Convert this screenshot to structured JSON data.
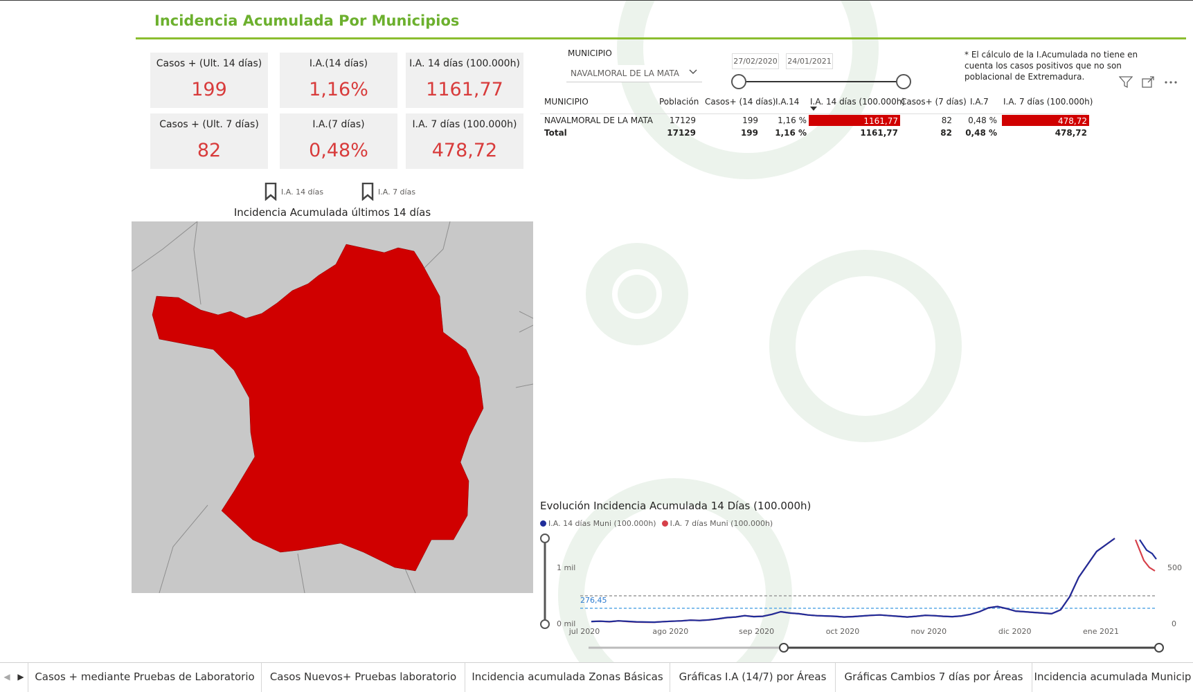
{
  "report": {
    "title": "Incidencia Acumulada Por Municipios"
  },
  "cards": [
    {
      "label": "Casos + (Ult. 14 días)",
      "value": "199"
    },
    {
      "label": "I.A.(14 días)",
      "value": "1,16%"
    },
    {
      "label": "I.A. 14 días (100.000h)",
      "value": "1161,77"
    },
    {
      "label": "Casos + (Ult. 7 días)",
      "value": "82"
    },
    {
      "label": "I.A.(7 días)",
      "value": "0,48%"
    },
    {
      "label": "I.A. 7 días (100.000h)",
      "value": "478,72"
    }
  ],
  "bookmarks": {
    "ia14": "I.A. 14 días",
    "ia7": "I.A. 7 días"
  },
  "map": {
    "title": "Incidencia Acumulada últimos 14 días",
    "fill_color": "#d00000",
    "background_color": "#c8c8c8"
  },
  "slicer": {
    "label": "MUNICIPIO",
    "selected": "NAVALMORAL DE LA MATA",
    "date_start": "27/02/2020",
    "date_end": "24/01/2021"
  },
  "note": "* El cálculo de la I.Acumulada no tiene en cuenta los casos positivos que no son poblacional de Extremadura.",
  "table": {
    "headers": [
      "MUNICIPIO",
      "Población",
      "Casos+ (14 días)",
      "I.A.14",
      "I.A. 14 días (100.000h)",
      "Casos+ (7 días)",
      "I.A.7",
      "I.A. 7 días (100.000h)"
    ],
    "rows": [
      [
        "NAVALMORAL DE LA MATA",
        "17129",
        "199",
        "1,16 %",
        "1161,77",
        "82",
        "0,48 %",
        "478,72"
      ]
    ],
    "total": [
      "Total",
      "17129",
      "199",
      "1,16 %",
      "1161,77",
      "82",
      "0,48 %",
      "478,72"
    ],
    "highlight_color": "#d00000"
  },
  "chart_data": {
    "type": "line",
    "title": "Evolución Incidencia Acumulada 14 Días (100.000h)",
    "x_ticks": [
      "jul 2020",
      "ago 2020",
      "sep 2020",
      "oct 2020",
      "nov 2020",
      "dic 2020",
      "ene 2021"
    ],
    "y_left_ticks": [
      "1 mil",
      "0 mil"
    ],
    "y_right_ticks": [
      "500",
      "0"
    ],
    "reference_label": "276,45",
    "series": [
      {
        "name": "I.A. 14 días Muni (100.000h)",
        "color": "#1f2d9a",
        "values": [
          20,
          25,
          18,
          30,
          22,
          15,
          12,
          10,
          18,
          25,
          30,
          40,
          35,
          45,
          60,
          80,
          90,
          110,
          95,
          100,
          130,
          170,
          150,
          140,
          120,
          110,
          105,
          100,
          90,
          95,
          105,
          115,
          120,
          110,
          100,
          90,
          100,
          115,
          110,
          100,
          95,
          105,
          130,
          170,
          230,
          250,
          220,
          180,
          170,
          160,
          150,
          140,
          200,
          400,
          700,
          900,
          1100,
          1200,
          1300
        ]
      },
      {
        "name": "I.A. 7 días Muni (100.000h)",
        "color": "#d6404a",
        "values": [
          10,
          12,
          8,
          15,
          10,
          6,
          5,
          5,
          9,
          12,
          15,
          20,
          18,
          22,
          30,
          40,
          45,
          55,
          48,
          50,
          65,
          85,
          75,
          70,
          60,
          55,
          52,
          50,
          45,
          48,
          52,
          57,
          60,
          55,
          50,
          45,
          50,
          57,
          55,
          50,
          47,
          52,
          65,
          85,
          115,
          125,
          110,
          90,
          85,
          80,
          75,
          70,
          100,
          200,
          350,
          450,
          550,
          600,
          650
        ]
      }
    ]
  },
  "tabs": [
    "Casos + mediante Pruebas de Laboratorio",
    "Casos Nuevos+ Pruebas laboratorio",
    "Incidencia acumulada Zonas Básicas",
    "Gráficas I.A (14/7) por Áreas",
    "Gráficas Cambios 7 días por Áreas",
    "Incidencia acumulada Municip"
  ]
}
